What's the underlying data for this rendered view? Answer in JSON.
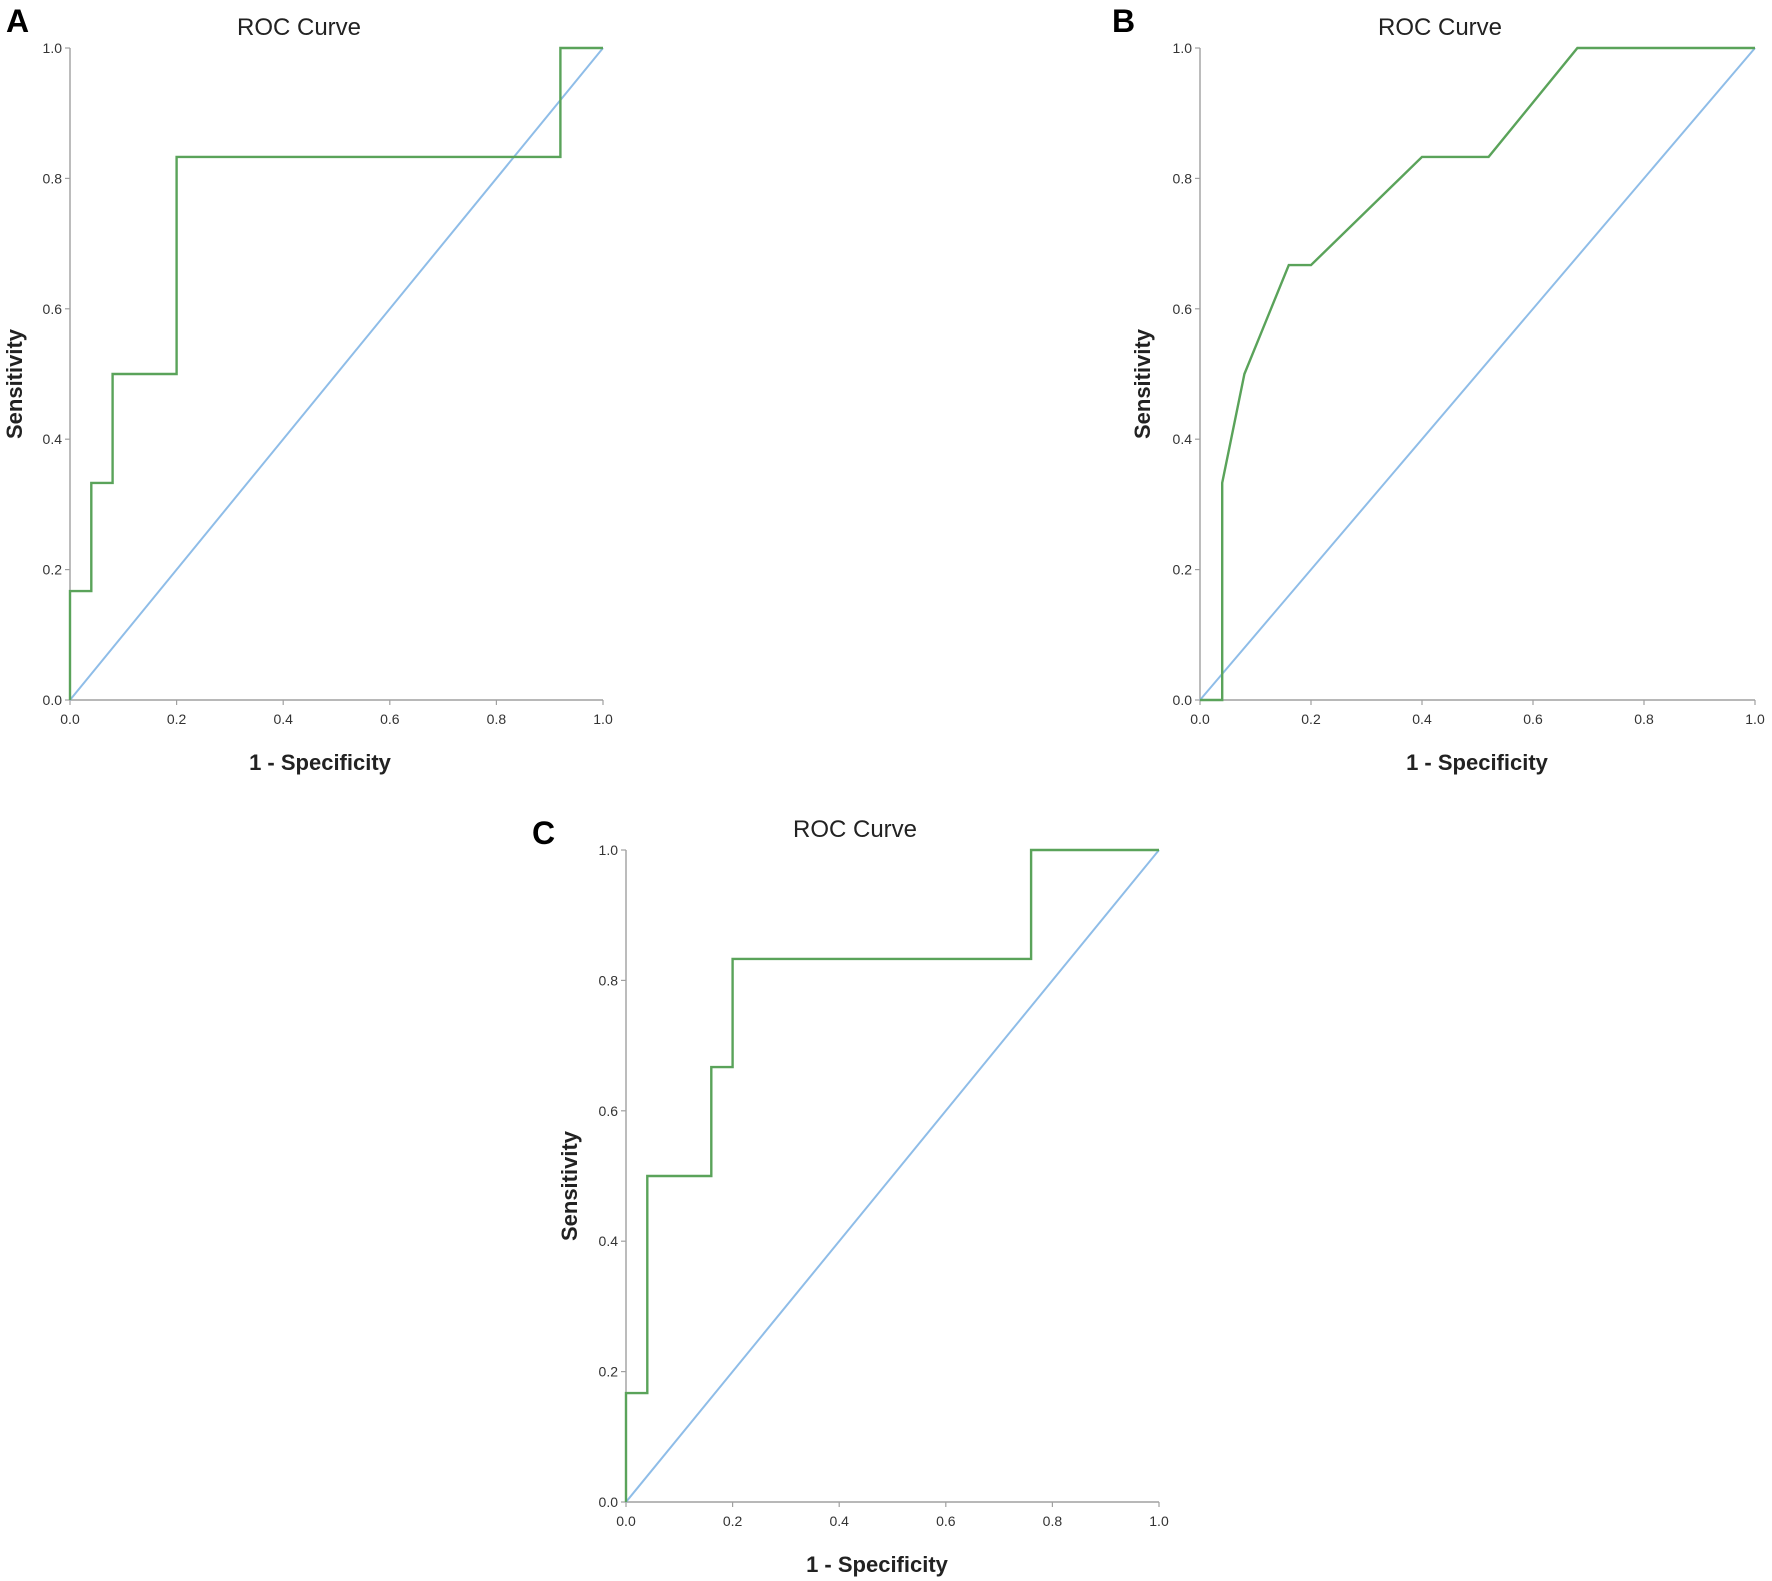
{
  "colors": {
    "roc": "#5aa35a",
    "reference": "#8fbde8",
    "axis": "#a0a0a0"
  },
  "chart_data": [
    {
      "panel": "A",
      "type": "line",
      "title": "ROC Curve",
      "xlabel": "1 - Specificity",
      "ylabel": "Sensitivity",
      "xlim": [
        0,
        1
      ],
      "ylim": [
        0,
        1
      ],
      "x_ticks": [
        "0.0",
        "0.2",
        "0.4",
        "0.6",
        "0.8",
        "1.0"
      ],
      "y_ticks": [
        "0.0",
        "0.2",
        "0.4",
        "0.6",
        "0.8",
        "1.0"
      ],
      "grid": false,
      "series": [
        {
          "role": "roc",
          "x": [
            0,
            0,
            0.04,
            0.04,
            0.08,
            0.08,
            0.2,
            0.2,
            0.92,
            0.92,
            1
          ],
          "y": [
            0,
            0.167,
            0.167,
            0.333,
            0.333,
            0.5,
            0.5,
            0.833,
            0.833,
            1,
            1
          ]
        },
        {
          "role": "reference",
          "x": [
            0,
            1
          ],
          "y": [
            0,
            1
          ]
        }
      ]
    },
    {
      "panel": "B",
      "type": "line",
      "title": "ROC Curve",
      "xlabel": "1 - Specificity",
      "ylabel": "Sensitivity",
      "xlim": [
        0,
        1
      ],
      "ylim": [
        0,
        1
      ],
      "x_ticks": [
        "0.0",
        "0.2",
        "0.4",
        "0.6",
        "0.8",
        "1.0"
      ],
      "y_ticks": [
        "0.0",
        "0.2",
        "0.4",
        "0.6",
        "0.8",
        "1.0"
      ],
      "grid": false,
      "series": [
        {
          "role": "roc",
          "x": [
            0,
            0.04,
            0.04,
            0.08,
            0.16,
            0.2,
            0.4,
            0.52,
            0.68,
            1
          ],
          "y": [
            0,
            0,
            0.333,
            0.5,
            0.667,
            0.667,
            0.833,
            0.833,
            1,
            1
          ]
        },
        {
          "role": "reference",
          "x": [
            0,
            1
          ],
          "y": [
            0,
            1
          ]
        }
      ]
    },
    {
      "panel": "C",
      "type": "line",
      "title": "ROC Curve",
      "xlabel": "1 - Specificity",
      "ylabel": "Sensitivity",
      "xlim": [
        0,
        1
      ],
      "ylim": [
        0,
        1
      ],
      "x_ticks": [
        "0.0",
        "0.2",
        "0.4",
        "0.6",
        "0.8",
        "1.0"
      ],
      "y_ticks": [
        "0.0",
        "0.2",
        "0.4",
        "0.6",
        "0.8",
        "1.0"
      ],
      "grid": false,
      "series": [
        {
          "role": "roc",
          "x": [
            0,
            0,
            0.04,
            0.04,
            0.16,
            0.16,
            0.2,
            0.2,
            0.76,
            0.76,
            1
          ],
          "y": [
            0,
            0.167,
            0.167,
            0.5,
            0.5,
            0.667,
            0.667,
            0.833,
            0.833,
            1,
            1
          ]
        },
        {
          "role": "reference",
          "x": [
            0,
            1
          ],
          "y": [
            0,
            1
          ]
        }
      ]
    }
  ]
}
